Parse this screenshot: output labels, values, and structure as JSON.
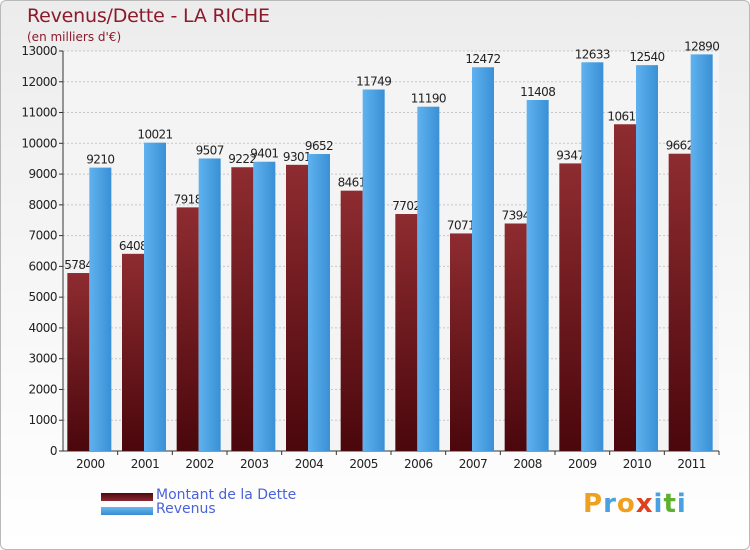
{
  "title": "Revenus/Dette - LA RICHE",
  "subtitle": "(en milliers d'€)",
  "legend": [
    {
      "label": "Montant de la Dette",
      "color": "#7a1e24"
    },
    {
      "label": "Revenus",
      "color": "#4ea3e6"
    }
  ],
  "brand": {
    "letters": [
      "P",
      "r",
      "o",
      "x",
      "i",
      "t",
      "i"
    ],
    "colors": [
      "#f0a020",
      "#4aa0e0",
      "#f0a020",
      "#e04020",
      "#4aa0e0",
      "#60b030",
      "#4aa0e0"
    ]
  },
  "chart_data": {
    "type": "bar",
    "title": "Revenus/Dette - LA RICHE",
    "subtitle": "(en milliers d'€)",
    "categories": [
      "2000",
      "2001",
      "2002",
      "2003",
      "2004",
      "2005",
      "2006",
      "2007",
      "2008",
      "2009",
      "2010",
      "2011"
    ],
    "series": [
      {
        "name": "Montant de la Dette",
        "color": "#7a1e24",
        "values": [
          5784,
          6408,
          7918,
          9222,
          9301,
          8461,
          7702,
          7071,
          7394,
          9347,
          10619,
          9662
        ],
        "labels": [
          "5784",
          "6408",
          "7918",
          "9222",
          "9301",
          "8461",
          "7702",
          "7071",
          "7394",
          "9347",
          "10619",
          "9662"
        ]
      },
      {
        "name": "Revenus",
        "color": "#4ea3e6",
        "values": [
          9210,
          10021,
          9507,
          9401,
          9652,
          11749,
          11190,
          12472,
          11408,
          12633,
          12540,
          12890
        ],
        "labels": [
          "9210",
          "10021",
          "9507",
          "9401",
          "9652",
          "11749",
          "11190",
          "12472",
          "11408",
          "12633",
          "12540",
          "12890"
        ]
      }
    ],
    "ylim": [
      0,
      13000
    ],
    "yticks": [
      0,
      1000,
      2000,
      3000,
      4000,
      5000,
      6000,
      7000,
      8000,
      9000,
      10000,
      11000,
      12000,
      13000
    ],
    "grid": true,
    "legend_position": "bottom-left"
  }
}
